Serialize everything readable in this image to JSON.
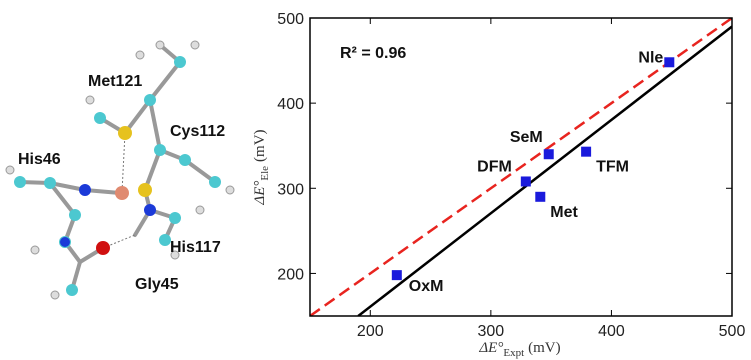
{
  "molecule": {
    "labels": [
      "Met121",
      "Cys112",
      "His46",
      "His117",
      "Gly45"
    ]
  },
  "chart_data": {
    "type": "scatter",
    "annotation": "R² = 0.96",
    "x_label": {
      "symbol": "ΔE°",
      "sub": "Expt",
      "unit": "(mV)"
    },
    "y_label": {
      "symbol": "ΔE°",
      "sub": "Ele",
      "unit": "(mV)"
    },
    "x": [
      222,
      329,
      341,
      348,
      379,
      448
    ],
    "values": [
      198,
      308,
      290,
      340,
      343,
      448
    ],
    "labels": [
      "OxM",
      "DFM",
      "Met",
      "SeM",
      "TFM",
      "Nle"
    ],
    "color": "#1a1adc",
    "lines": [
      {
        "x": [
          150,
          500
        ],
        "y": [
          150,
          500
        ],
        "color": "#e8241f",
        "dash": true
      },
      {
        "x": [
          190,
          500
        ],
        "y": [
          150,
          490
        ],
        "color": "#000000",
        "dash": false
      }
    ],
    "xlim": [
      150,
      500
    ],
    "ylim": [
      150,
      500
    ],
    "xticks": [
      200,
      300,
      400,
      500
    ],
    "yticks": [
      200,
      300,
      400,
      500
    ]
  }
}
